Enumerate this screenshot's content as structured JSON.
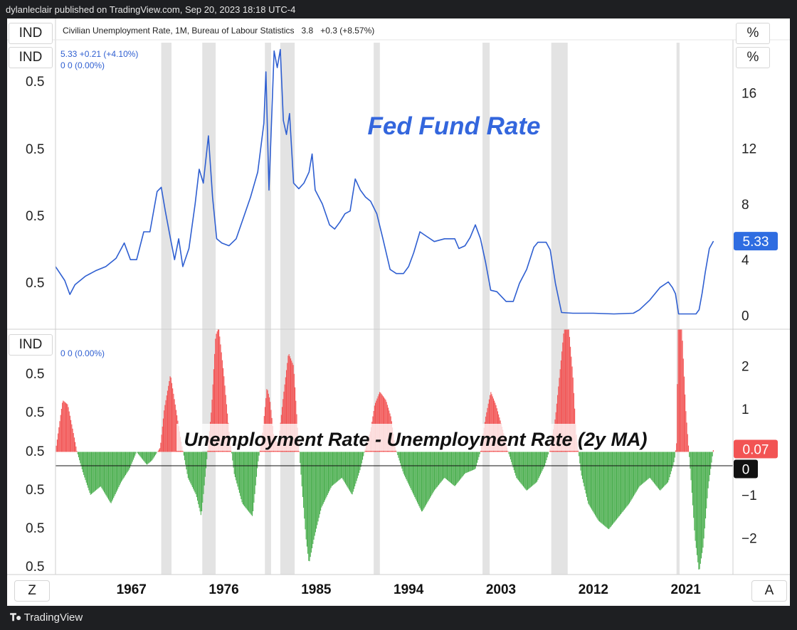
{
  "publisher_line": "dylanleclair published on TradingView.com, Sep 20, 2023 18:18 UTC-4",
  "boxes": {
    "ind": "IND",
    "pct": "%",
    "zoom": "Z",
    "auto": "A"
  },
  "main_series": {
    "title": "Civilian Unemployment Rate, 1M, Bureau of Labour Statistics",
    "value": "3.8",
    "change": "+0.3 (+8.57%)"
  },
  "pane1_legend": {
    "line1": "5.33  +0.21 (+4.10%)",
    "line2": "0  0 (0.00%)"
  },
  "pane2_legend": {
    "line1": "0  0 (0.00%)"
  },
  "footer_brand": "TradingView",
  "chart_data": [
    {
      "type": "line",
      "title": "Fed Fund Rate",
      "series_name": "Federal Funds Rate",
      "color": "#2f5fd1",
      "ylim": [
        -1,
        19.8
      ],
      "right_ticks": [
        "16",
        "12",
        "8",
        "4",
        "0"
      ],
      "right_tick_values": [
        16,
        12,
        8,
        4,
        0
      ],
      "left_ticks": [
        "0.5",
        "0.5",
        "0.5",
        "0.5"
      ],
      "last_value_label": "5.33",
      "last_value": 5.33,
      "x": [
        1959.6,
        1960.5,
        1961.0,
        1961.5,
        1962.5,
        1963.5,
        1964.5,
        1965.5,
        1966.3,
        1966.9,
        1967.5,
        1968.2,
        1968.8,
        1969.5,
        1969.9,
        1970.3,
        1970.8,
        1971.2,
        1971.6,
        1972.0,
        1972.6,
        1973.2,
        1973.6,
        1974.0,
        1974.5,
        1974.9,
        1975.3,
        1975.8,
        1976.5,
        1977.2,
        1977.9,
        1978.6,
        1979.3,
        1979.9,
        1980.1,
        1980.4,
        1980.6,
        1980.9,
        1981.2,
        1981.5,
        1981.8,
        1982.1,
        1982.4,
        1982.8,
        1983.3,
        1983.8,
        1984.3,
        1984.6,
        1984.9,
        1985.6,
        1986.3,
        1986.8,
        1987.3,
        1987.8,
        1988.3,
        1988.8,
        1989.3,
        1989.8,
        1990.3,
        1990.9,
        1991.5,
        1992.2,
        1992.8,
        1993.5,
        1994.0,
        1994.5,
        1995.1,
        1995.7,
        1996.5,
        1997.5,
        1998.5,
        1998.9,
        1999.5,
        2000.0,
        2000.5,
        2001.0,
        2001.5,
        2002.0,
        2002.6,
        2003.5,
        2004.2,
        2004.8,
        2005.5,
        2006.2,
        2006.6,
        2007.4,
        2007.8,
        2008.3,
        2008.9,
        2010.0,
        2012.0,
        2014.0,
        2015.9,
        2016.5,
        2017.5,
        2018.5,
        2019.3,
        2019.7,
        2020.0,
        2020.3,
        2021.0,
        2022.0,
        2022.3,
        2022.6,
        2022.9,
        2023.3,
        2023.7
      ],
      "y": [
        3.5,
        2.5,
        1.5,
        2.2,
        2.8,
        3.2,
        3.5,
        4.1,
        5.2,
        4.0,
        4.0,
        6.0,
        6.0,
        8.9,
        9.2,
        7.5,
        5.5,
        4.0,
        5.5,
        3.5,
        4.8,
        8.0,
        10.5,
        9.5,
        12.9,
        8.5,
        5.5,
        5.2,
        5.0,
        5.5,
        7.0,
        8.5,
        10.3,
        13.8,
        17.5,
        9.0,
        13.0,
        19.0,
        17.8,
        19.1,
        14.0,
        13.0,
        14.5,
        9.5,
        9.1,
        9.5,
        10.3,
        11.6,
        9.0,
        8.0,
        6.5,
        6.2,
        6.7,
        7.3,
        7.5,
        9.8,
        9.0,
        8.5,
        8.2,
        7.3,
        5.5,
        3.3,
        3.0,
        3.0,
        3.5,
        4.5,
        6.0,
        5.7,
        5.3,
        5.5,
        5.5,
        4.8,
        5.0,
        5.6,
        6.5,
        5.5,
        3.8,
        1.8,
        1.7,
        1.0,
        1.0,
        2.3,
        3.3,
        4.9,
        5.25,
        5.25,
        4.7,
        2.3,
        0.2,
        0.15,
        0.15,
        0.1,
        0.15,
        0.4,
        1.1,
        2.0,
        2.4,
        2.0,
        1.55,
        0.1,
        0.1,
        0.1,
        0.4,
        1.6,
        3.1,
        4.8,
        5.33
      ]
    },
    {
      "type": "area",
      "title": "Unemployment Rate - Unemployment Rate (2y MA)",
      "ylim": [
        -2.85,
        2.85
      ],
      "right_ticks": [
        "2",
        "1",
        "0",
        "−1",
        "−2"
      ],
      "right_tick_values": [
        2,
        1,
        0,
        -1,
        -2
      ],
      "left_ticks": [
        "0.5",
        "0.5",
        "0.5",
        "0.5",
        "0.5",
        "0.5"
      ],
      "last_value_label": "0.07",
      "zero_label": "0",
      "positive_color": "#f25454",
      "negative_color": "#4caf50",
      "x": [
        1959.6,
        1960.3,
        1960.8,
        1961.3,
        1961.7,
        1962.3,
        1963.0,
        1964.0,
        1965.0,
        1966.0,
        1966.8,
        1967.5,
        1968.5,
        1969.0,
        1969.8,
        1970.2,
        1970.8,
        1971.2,
        1971.8,
        1972.5,
        1973.3,
        1973.8,
        1974.3,
        1974.8,
        1975.2,
        1975.5,
        1976.0,
        1976.5,
        1977.0,
        1977.8,
        1978.8,
        1979.3,
        1979.8,
        1980.2,
        1980.5,
        1980.9,
        1981.3,
        1981.8,
        1982.3,
        1982.8,
        1983.2,
        1983.6,
        1984.0,
        1984.3,
        1984.8,
        1985.5,
        1986.5,
        1987.5,
        1988.5,
        1989.3,
        1989.8,
        1990.3,
        1990.7,
        1991.2,
        1991.8,
        1992.3,
        1992.7,
        1993.5,
        1994.5,
        1995.3,
        1996.5,
        1997.5,
        1998.5,
        1999.5,
        2000.5,
        2001.0,
        2001.5,
        2002.0,
        2002.5,
        2003.2,
        2003.7,
        2004.5,
        2005.5,
        2006.5,
        2007.3,
        2007.8,
        2008.3,
        2008.8,
        2009.2,
        2009.6,
        2010.0,
        2010.3,
        2010.8,
        2011.5,
        2012.5,
        2013.5,
        2014.5,
        2015.5,
        2016.5,
        2017.5,
        2018.5,
        2019.3,
        2019.9,
        2020.1,
        2020.3,
        2020.6,
        2021.0,
        2021.5,
        2021.9,
        2022.3,
        2022.7,
        2023.2,
        2023.7
      ],
      "y": [
        0,
        1.2,
        1.1,
        0.5,
        0,
        -0.5,
        -1.0,
        -0.8,
        -1.2,
        -0.7,
        -0.4,
        0,
        -0.3,
        -0.2,
        0.1,
        1.0,
        1.8,
        1.2,
        0.3,
        -0.6,
        -1.0,
        -1.5,
        -0.3,
        1.0,
        2.7,
        2.9,
        1.8,
        0.5,
        -0.5,
        -1.2,
        -1.5,
        -0.3,
        0.5,
        1.5,
        1.2,
        0.3,
        0.2,
        1.3,
        2.3,
        2.0,
        0.5,
        -0.8,
        -2.0,
        -2.6,
        -2.0,
        -1.3,
        -0.8,
        -0.6,
        -1.0,
        -0.4,
        0.1,
        0.5,
        1.1,
        1.4,
        1.2,
        0.8,
        0.1,
        -0.5,
        -1.0,
        -1.4,
        -0.9,
        -0.6,
        -0.8,
        -0.5,
        -0.4,
        0.0,
        0.8,
        1.4,
        1.1,
        0.5,
        0.0,
        -0.6,
        -0.9,
        -0.7,
        -0.3,
        0.1,
        0.8,
        2.0,
        3.0,
        2.9,
        1.8,
        0.5,
        -0.5,
        -1.2,
        -1.6,
        -1.8,
        -1.5,
        -1.2,
        -0.8,
        -0.6,
        -0.9,
        -0.7,
        -0.2,
        0.2,
        3.5,
        3.0,
        1.0,
        -0.6,
        -2.0,
        -2.8,
        -2.2,
        -0.8,
        0.07
      ]
    }
  ],
  "x_axis": {
    "tick_labels": [
      "1967",
      "1976",
      "1985",
      "1994",
      "2003",
      "2012",
      "2021"
    ],
    "tick_values": [
      1967,
      1976,
      1985,
      1994,
      2003,
      2012,
      2021
    ],
    "xlim": [
      1959.6,
      2025.6
    ]
  },
  "recessions": [
    [
      1969.9,
      1970.9
    ],
    [
      1973.9,
      1975.2
    ],
    [
      1980.0,
      1980.6
    ],
    [
      1981.5,
      1982.9
    ],
    [
      1990.6,
      1991.2
    ],
    [
      2001.2,
      2001.9
    ],
    [
      2007.9,
      2009.5
    ],
    [
      2020.1,
      2020.4
    ]
  ]
}
